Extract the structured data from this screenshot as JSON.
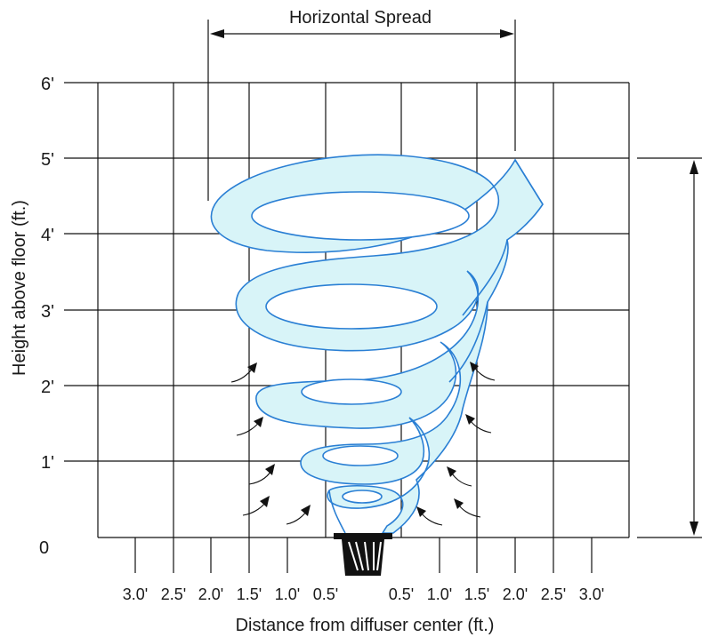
{
  "diagram": {
    "top_label": "Horizontal Spread",
    "y_axis_label": "Height above floor (ft.)",
    "x_axis_label": "Distance from diffuser center (ft.)",
    "y_ticks": [
      "6'",
      "5'",
      "4'",
      "3'",
      "2'",
      "1'",
      "0"
    ],
    "x_ticks_left": [
      "3.0'",
      "2.5'",
      "2.0'",
      "1.5'",
      "1.0'",
      "0.5'"
    ],
    "x_ticks_right": [
      "0.5'",
      "1.0'",
      "1.5'",
      "2.0'",
      "2.5'",
      "3.0'"
    ],
    "colors": {
      "airflow_fill": "#d8f4f8",
      "airflow_stroke": "#2a7fd4",
      "grid": "#111111",
      "diffuser": "#111111"
    }
  }
}
